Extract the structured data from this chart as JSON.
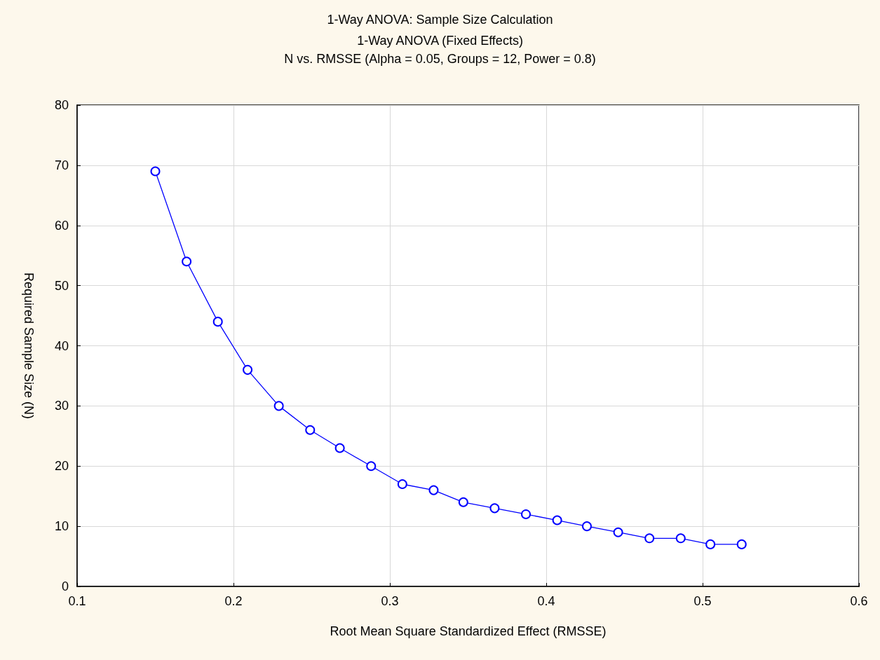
{
  "chart_data": {
    "type": "line",
    "title": "1-Way ANOVA: Sample Size Calculation",
    "subtitle": "1-Way ANOVA (Fixed Effects)\nN vs. RMSSE (Alpha = 0.05, Groups = 12, Power = 0.8)",
    "xlabel": "Root Mean Square Standardized Effect (RMSSE)",
    "ylabel": "Required Sample Size (N)",
    "x": [
      0.15,
      0.17,
      0.19,
      0.209,
      0.229,
      0.249,
      0.268,
      0.288,
      0.308,
      0.328,
      0.347,
      0.367,
      0.387,
      0.407,
      0.426,
      0.446,
      0.466,
      0.486,
      0.505,
      0.525
    ],
    "series": [
      {
        "color": "#0000ff",
        "values": [
          69,
          54,
          44,
          36,
          30,
          26,
          23,
          20,
          17,
          16,
          14,
          13,
          12,
          11,
          10,
          9,
          8,
          8,
          7,
          7
        ]
      }
    ],
    "xlim": [
      0.1,
      0.6
    ],
    "xticks": [
      0.1,
      0.2,
      0.3,
      0.4,
      0.5,
      0.6
    ],
    "ylim": [
      0,
      80
    ],
    "yticks": [
      0,
      10,
      20,
      30,
      40,
      50,
      60,
      70,
      80
    ],
    "grid": true,
    "marker": "circle",
    "line_style": "solid"
  }
}
